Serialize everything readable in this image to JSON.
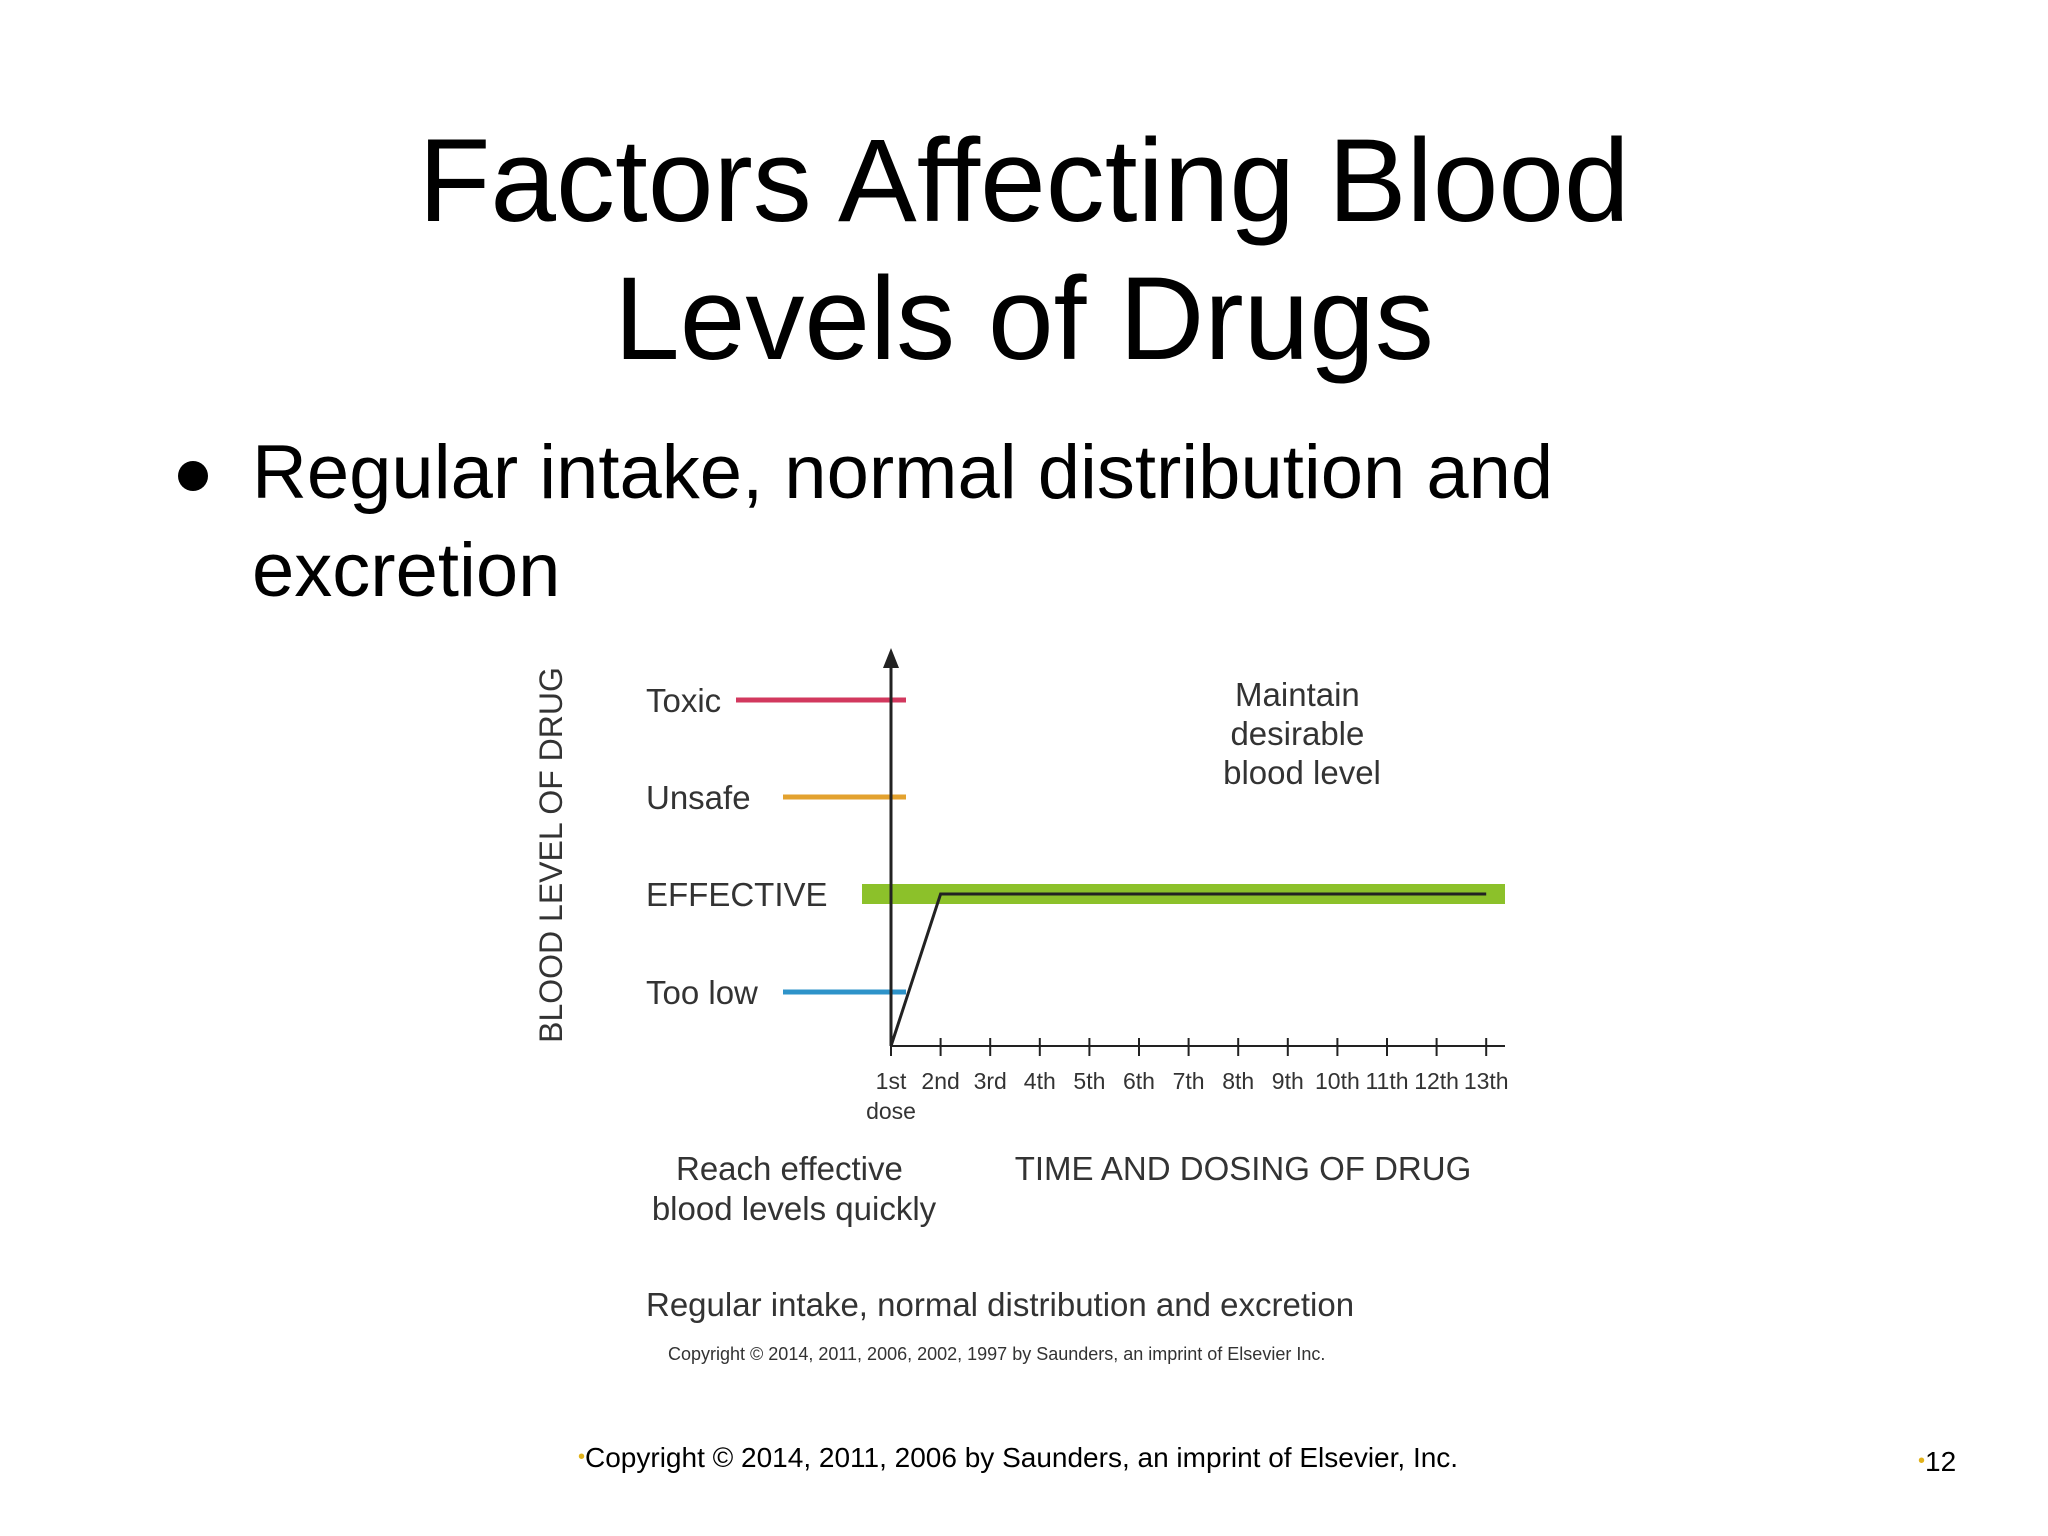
{
  "slide": {
    "title_line1": "Factors Affecting Blood",
    "title_line2": "Levels of Drugs",
    "bullet": "Regular intake, normal distribution and excretion",
    "footer": "Copyright © 2014, 2011, 2006 by Saunders, an imprint of Elsevier, Inc.",
    "page_number": "12"
  },
  "colors": {
    "toxic": "#d2385e",
    "unsafe": "#e3a22f",
    "effective": "#8cc12a",
    "too_low": "#2e93c9",
    "footer_bullet": "#e1b21a"
  },
  "chart_data": {
    "type": "line",
    "ylabel": "BLOOD LEVEL OF DRUG",
    "xlabel": "TIME AND DOSING OF DRUG",
    "levels": [
      {
        "name": "Toxic",
        "color": "#d2385e"
      },
      {
        "name": "Unsafe",
        "color": "#e3a22f"
      },
      {
        "name": "EFFECTIVE",
        "color": "#8cc12a"
      },
      {
        "name": "Too low",
        "color": "#2e93c9"
      }
    ],
    "categories": [
      "1st",
      "2nd",
      "3rd",
      "4th",
      "5th",
      "6th",
      "7th",
      "8th",
      "9th",
      "10th",
      "11th",
      "12th",
      "13th"
    ],
    "first_tick_sublabel": "dose",
    "series": [
      {
        "values": [
          0,
          2,
          2,
          2,
          2,
          2,
          2,
          2,
          2,
          2,
          2,
          2,
          2
        ]
      }
    ],
    "annotations": {
      "maintain": [
        "Maintain",
        "desirable",
        "blood level"
      ],
      "reach": [
        "Reach effective",
        "blood levels quickly"
      ]
    },
    "caption": "Regular intake, normal distribution and excretion",
    "copyright": "Copyright © 2014, 2011, 2006, 2002, 1997 by Saunders, an imprint of Elsevier Inc."
  }
}
